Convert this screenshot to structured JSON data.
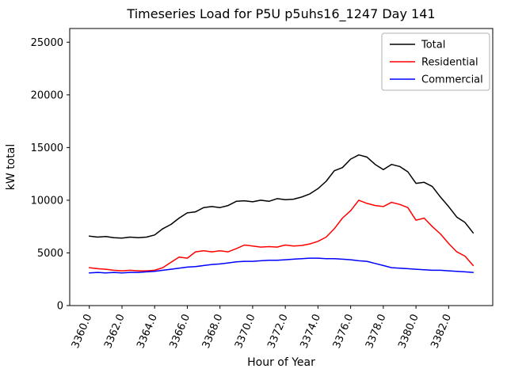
{
  "chart_data": {
    "type": "line",
    "title": "Timeseries Load for P5U p5uhs16_1247  Day 141",
    "xlabel": "Hour of Year",
    "ylabel": "kW total",
    "xlim": [
      3358.8,
      3384.7
    ],
    "ylim": [
      0,
      26300
    ],
    "grid": false,
    "legend_position": "upper right",
    "xticks": [
      3360,
      3362,
      3364,
      3366,
      3368,
      3370,
      3372,
      3374,
      3376,
      3378,
      3380,
      3382
    ],
    "xtick_labels": [
      "3360.0",
      "3362.0",
      "3364.0",
      "3366.0",
      "3368.0",
      "3370.0",
      "3372.0",
      "3374.0",
      "3376.0",
      "3378.0",
      "3380.0",
      "3382.0"
    ],
    "yticks": [
      0,
      5000,
      10000,
      15000,
      20000,
      25000
    ],
    "ytick_labels": [
      "0",
      "5000",
      "10000",
      "15000",
      "20000",
      "25000"
    ],
    "x": [
      3360.0,
      3360.5,
      3361.0,
      3361.5,
      3362.0,
      3362.5,
      3363.0,
      3363.5,
      3364.0,
      3364.5,
      3365.0,
      3365.5,
      3366.0,
      3366.5,
      3367.0,
      3367.5,
      3368.0,
      3368.5,
      3369.0,
      3369.5,
      3370.0,
      3370.5,
      3371.0,
      3371.5,
      3372.0,
      3372.5,
      3373.0,
      3373.5,
      3374.0,
      3374.5,
      3375.0,
      3375.5,
      3376.0,
      3376.5,
      3377.0,
      3377.5,
      3378.0,
      3378.5,
      3379.0,
      3379.5,
      3380.0,
      3380.5,
      3381.0,
      3381.5,
      3382.0,
      3382.5,
      3383.0,
      3383.5
    ],
    "series": [
      {
        "name": "Total",
        "color": "#000000",
        "values": [
          6600,
          6500,
          6550,
          6450,
          6400,
          6500,
          6450,
          6500,
          6700,
          7300,
          7700,
          8300,
          8800,
          8900,
          9300,
          9400,
          9300,
          9500,
          9900,
          9950,
          9850,
          10000,
          9900,
          10150,
          10050,
          10100,
          10300,
          10600,
          11100,
          11800,
          12800,
          13100,
          13900,
          14300,
          14100,
          13400,
          12900,
          13400,
          13200,
          12700,
          11600,
          11700,
          11300,
          10300,
          9400,
          8400,
          7900,
          6900
        ]
      },
      {
        "name": "Residential",
        "color": "#ff0000",
        "values": [
          3600,
          3500,
          3450,
          3350,
          3300,
          3350,
          3300,
          3300,
          3350,
          3600,
          4100,
          4600,
          4500,
          5100,
          5200,
          5100,
          5200,
          5100,
          5400,
          5750,
          5650,
          5550,
          5600,
          5550,
          5750,
          5650,
          5700,
          5850,
          6100,
          6500,
          7300,
          8300,
          9000,
          10000,
          9700,
          9500,
          9400,
          9800,
          9600,
          9300,
          8100,
          8300,
          7500,
          6800,
          5900,
          5100,
          4700,
          3800
        ]
      },
      {
        "name": "Commercial",
        "color": "#0000ff",
        "values": [
          3100,
          3150,
          3100,
          3150,
          3100,
          3150,
          3150,
          3200,
          3250,
          3350,
          3450,
          3550,
          3650,
          3700,
          3800,
          3900,
          3950,
          4050,
          4150,
          4200,
          4200,
          4250,
          4300,
          4300,
          4350,
          4400,
          4450,
          4500,
          4500,
          4450,
          4450,
          4400,
          4350,
          4250,
          4200,
          4000,
          3800,
          3600,
          3550,
          3500,
          3450,
          3400,
          3350,
          3350,
          3300,
          3250,
          3200,
          3150
        ]
      }
    ]
  }
}
